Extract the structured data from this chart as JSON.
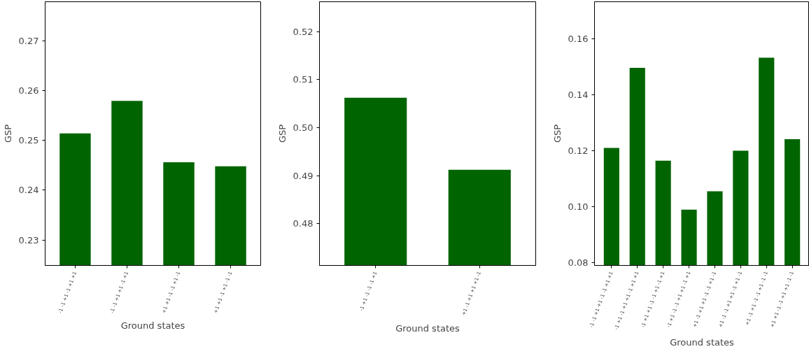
{
  "chart_data": [
    {
      "type": "bar",
      "xlabel": "Ground states",
      "ylabel": "GSP",
      "categories": [
        "-1 -1 +1 -1 +1 +1",
        "-1 -1 +1 +1 -1 +1",
        "+1 +1 -1 -1 +1 -1",
        "+1 +1 -1 +1 -1 -1"
      ],
      "values": [
        0.2514,
        0.2579,
        0.2456,
        0.2448
      ],
      "color": "#006400",
      "ylim": [
        0.2249,
        0.2778
      ],
      "yticks": [
        0.23,
        0.24,
        0.25,
        0.26,
        0.27
      ],
      "grid": false
    },
    {
      "type": "bar",
      "xlabel": "Ground states",
      "ylabel": "GSP",
      "categories": [
        "-1 +1 -1 -1 -1 +1",
        "+1 -1 +1 +1 +1 -1"
      ],
      "values": [
        0.5062,
        0.4912
      ],
      "color": "#006400",
      "ylim": [
        0.4713,
        0.5262
      ],
      "yticks": [
        0.48,
        0.49,
        {
          "value": 0.5,
          "label": "0.50"
        },
        0.51,
        0.52
      ],
      "grid": false
    },
    {
      "type": "bar",
      "xlabel": "Ground states",
      "ylabel": "GSP",
      "categories": [
        "-1 -1 +1 +1 -1 -1 +1 +1",
        "-1 +1 -1 +1 +1 -1 +1 +1",
        "-1 +1 +1 -1 -1 +1 -1 +1",
        "-1 +1 -1 -1 +1 +1 -1 +1",
        "+1 -1 +1 +1 -1 -1 +1 -1",
        "+1 -1 -1 +1 +1 -1 +1 -1",
        "+1 -1 +1 -1 -1 +1 -1 -1",
        "+1 +1 -1 -1 +1 +1 -1 -1"
      ],
      "values": [
        0.121,
        0.1496,
        0.1164,
        0.0989,
        0.1055,
        0.12,
        0.1532,
        0.1241
      ],
      "color": "#006400",
      "ylim": [
        0.079,
        0.1732
      ],
      "yticks": [
        0.08,
        {
          "value": 0.1,
          "label": "0.10"
        },
        0.12,
        0.14,
        0.16
      ],
      "grid": false
    }
  ]
}
